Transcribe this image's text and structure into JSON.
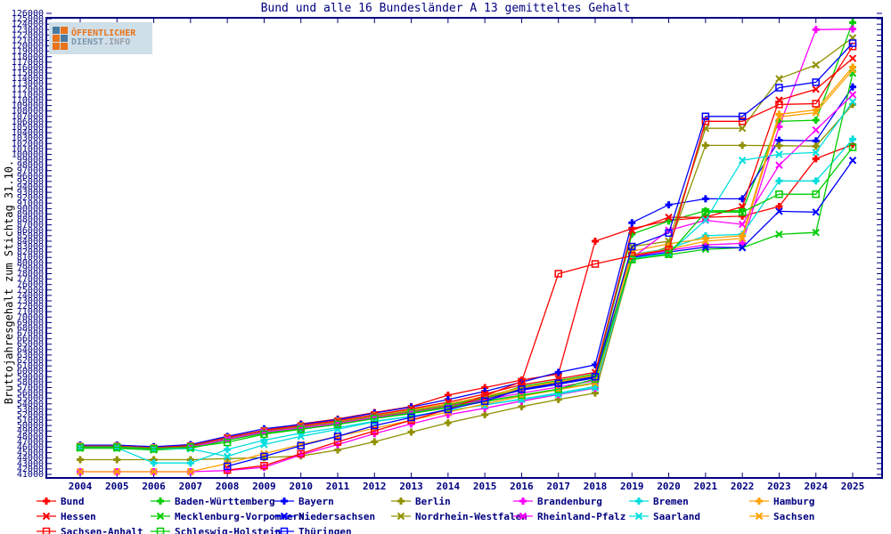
{
  "title": "Bund und alle 16 Bundesländer A 13 gemitteltes Gehalt",
  "logo": {
    "line1": "ÖFFENTLICHER",
    "line2": "DIENST",
    "line2_suffix": ".INFO"
  },
  "y_axis": {
    "label": "Bruttojahresgehalt zum Stichtag 31.10.",
    "min": 41000,
    "max": 126000,
    "step": 1000
  },
  "x_axis": {
    "min": 2004,
    "max": 2025,
    "step": 1
  },
  "colors": {
    "axis": "#000080",
    "text": "#000080",
    "background": "#ffffff"
  },
  "chart_data": {
    "type": "line",
    "title": "Bund und alle 16 Bundesländer A 13 gemitteltes Gehalt",
    "xlabel": "",
    "ylabel": "Bruttojahresgehalt zum Stichtag 31.10.",
    "ylim": [
      41000,
      126000
    ],
    "grid": false,
    "legend_position": "bottom",
    "x": [
      2004,
      2005,
      2006,
      2007,
      2008,
      2009,
      2010,
      2011,
      2012,
      2013,
      2014,
      2015,
      2016,
      2017,
      2018,
      2019,
      2020,
      2021,
      2022,
      2023,
      2024,
      2025
    ],
    "series": [
      {
        "name": "Bund",
        "color": "#ff0000",
        "marker": "plus",
        "values": [
          46400,
          46400,
          46000,
          46300,
          47800,
          49100,
          50300,
          51200,
          52400,
          53500,
          55600,
          57000,
          58400,
          59500,
          84000,
          86300,
          87800,
          88400,
          88600,
          90400,
          99200,
          101800
        ]
      },
      {
        "name": "Baden-Württemberg",
        "color": "#00cc00",
        "marker": "plus",
        "values": [
          46200,
          46200,
          45900,
          46200,
          47700,
          49000,
          49800,
          50700,
          51800,
          52800,
          53900,
          55100,
          57200,
          58300,
          59500,
          85300,
          87700,
          89600,
          89600,
          106100,
          106300,
          124300
        ]
      },
      {
        "name": "Bayern",
        "color": "#0000ff",
        "marker": "plus",
        "values": [
          46400,
          46400,
          46100,
          46500,
          48000,
          49400,
          50200,
          51100,
          52300,
          53400,
          54800,
          56300,
          58000,
          59800,
          61200,
          87400,
          90700,
          91800,
          91800,
          102600,
          102500,
          112450
        ]
      },
      {
        "name": "Berlin",
        "color": "#909000",
        "marker": "plus",
        "values": [
          43700,
          43700,
          43700,
          43700,
          43900,
          44100,
          44400,
          45500,
          47000,
          48800,
          50500,
          52000,
          53500,
          54800,
          56000,
          80600,
          83000,
          101650,
          101650,
          101600,
          101500,
          109200
        ]
      },
      {
        "name": "Brandenburg",
        "color": "#ff00ff",
        "marker": "plus",
        "values": [
          41500,
          41500,
          41500,
          41500,
          41700,
          42300,
          44600,
          46500,
          48500,
          50300,
          52000,
          53200,
          54500,
          55700,
          56900,
          81200,
          82300,
          83300,
          83600,
          105100,
          123000,
          123100
        ]
      },
      {
        "name": "Bremen",
        "color": "#00dddd",
        "marker": "plus",
        "values": [
          45900,
          45900,
          43100,
          43100,
          45600,
          47300,
          48600,
          49600,
          50800,
          51700,
          52800,
          53800,
          54900,
          56000,
          57200,
          81600,
          82600,
          85000,
          85250,
          95100,
          95100,
          102800
        ]
      },
      {
        "name": "Hamburg",
        "color": "#ffa000",
        "marker": "plus",
        "values": [
          46200,
          46200,
          45900,
          46200,
          47700,
          49000,
          49900,
          50800,
          51900,
          52900,
          54000,
          55400,
          57000,
          58100,
          59300,
          82150,
          83500,
          84500,
          85000,
          107400,
          108200,
          116100
        ]
      },
      {
        "name": "Hessen",
        "color": "#ff0000",
        "marker": "x",
        "values": [
          46200,
          46200,
          45900,
          46300,
          47800,
          49100,
          50000,
          50900,
          52000,
          53100,
          54300,
          55800,
          57500,
          58600,
          59800,
          86000,
          88400,
          88400,
          90350,
          110000,
          112000,
          117700
        ]
      },
      {
        "name": "Mecklenburg-Vorpommern",
        "color": "#00cc00",
        "marker": "x",
        "values": [
          45800,
          45800,
          45500,
          45800,
          47300,
          48600,
          49400,
          50200,
          51300,
          52200,
          53300,
          54400,
          55600,
          56700,
          57900,
          80700,
          81500,
          82500,
          82800,
          85250,
          85600,
          114950
        ]
      },
      {
        "name": "Niedersachsen",
        "color": "#0000ff",
        "marker": "x",
        "values": [
          46100,
          46100,
          45800,
          46100,
          47600,
          48900,
          49700,
          50500,
          51600,
          52500,
          53600,
          54900,
          56500,
          57600,
          58800,
          81000,
          82000,
          82900,
          82800,
          89500,
          89350,
          98900
        ]
      },
      {
        "name": "Nordrhein-Westfalen",
        "color": "#909000",
        "marker": "x",
        "values": [
          46100,
          46100,
          45800,
          46100,
          47600,
          48900,
          49800,
          50600,
          51700,
          52600,
          53700,
          55000,
          56800,
          57900,
          59100,
          83000,
          84000,
          104800,
          104800,
          113950,
          116500,
          121500
        ]
      },
      {
        "name": "Rheinland-Pfalz",
        "color": "#ff00ff",
        "marker": "x",
        "values": [
          46000,
          46000,
          45700,
          46000,
          47500,
          48800,
          49600,
          50400,
          51500,
          52400,
          53500,
          54700,
          56000,
          57100,
          58300,
          80900,
          86000,
          87850,
          87100,
          98000,
          104500,
          111000
        ]
      },
      {
        "name": "Saarland",
        "color": "#00dddd",
        "marker": "x",
        "values": [
          46000,
          46000,
          45700,
          45700,
          44300,
          46500,
          48000,
          49300,
          50700,
          51700,
          52800,
          53800,
          54800,
          55800,
          57000,
          80800,
          81800,
          87900,
          98900,
          100000,
          100350,
          109700
        ]
      },
      {
        "name": "Sachsen",
        "color": "#ffa000",
        "marker": "x",
        "values": [
          41500,
          41500,
          41500,
          41500,
          43000,
          44800,
          46500,
          48000,
          49500,
          51000,
          52500,
          54000,
          55400,
          56600,
          57800,
          81500,
          82500,
          84000,
          84500,
          106900,
          107700,
          115600
        ]
      },
      {
        "name": "Sachsen-Anhalt",
        "color": "#ff0000",
        "marker": "square",
        "values": [
          null,
          null,
          null,
          null,
          41800,
          42600,
          44800,
          47000,
          49000,
          51000,
          53000,
          55500,
          58100,
          78000,
          79800,
          81300,
          82450,
          106100,
          106100,
          109200,
          109350,
          119900
        ]
      },
      {
        "name": "Schleswig-Holstein",
        "color": "#00cc00",
        "marker": "square",
        "values": [
          46000,
          46000,
          45700,
          46000,
          46900,
          48400,
          49300,
          50200,
          51300,
          52300,
          53400,
          54500,
          55600,
          56700,
          58600,
          80600,
          81600,
          89350,
          89350,
          92650,
          92650,
          101300
        ]
      },
      {
        "name": "Thüringen",
        "color": "#0000ff",
        "marker": "square",
        "values": [
          null,
          null,
          null,
          null,
          42500,
          44300,
          46300,
          48000,
          50000,
          51500,
          53000,
          54500,
          56700,
          57800,
          59000,
          83000,
          85500,
          107000,
          107000,
          112300,
          113300,
          120500
        ]
      }
    ]
  }
}
